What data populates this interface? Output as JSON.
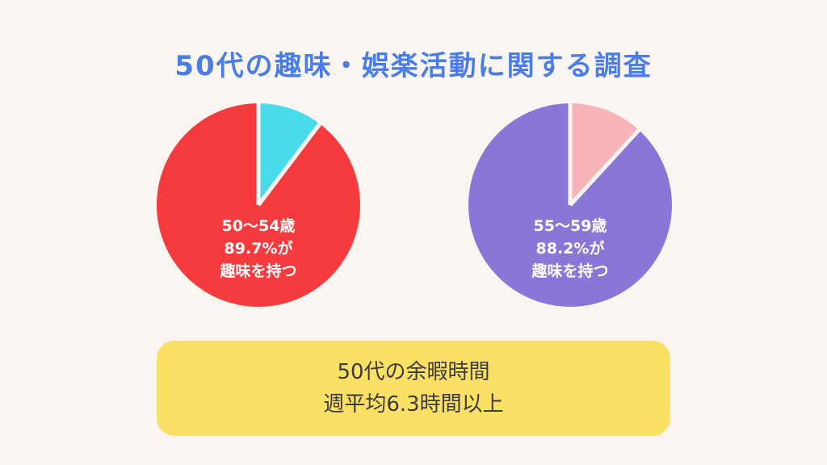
{
  "title": "50代の趣味・娯楽活動に関する調査",
  "colors": {
    "background": "#faf5f0",
    "title": "#4a7de8",
    "pie_left_main": "#f53b3e",
    "pie_left_rest": "#48dceb",
    "pie_right_main": "#8b76d8",
    "pie_right_rest": "#f8b4b8",
    "summary_bg": "#fbe066",
    "divider": "#faf5f0"
  },
  "chart_data": [
    {
      "type": "pie",
      "title": "",
      "label_lines": [
        "50〜54歳",
        "89.7%が",
        "趣味を持つ"
      ],
      "slices": [
        {
          "name": "",
          "value": 89.7,
          "color": "#f53b3e"
        },
        {
          "name": "",
          "value": 10.3,
          "color": "#48dceb"
        }
      ]
    },
    {
      "type": "pie",
      "title": "",
      "label_lines": [
        "55〜59歳",
        "88.2%が",
        "趣味を持つ"
      ],
      "slices": [
        {
          "name": "",
          "value": 88.2,
          "color": "#8b76d8"
        },
        {
          "name": "",
          "value": 11.8,
          "color": "#f8b4b8"
        }
      ]
    }
  ],
  "summary": {
    "line1": "50代の余暇時間",
    "line2": "週平均6.3時間以上"
  }
}
